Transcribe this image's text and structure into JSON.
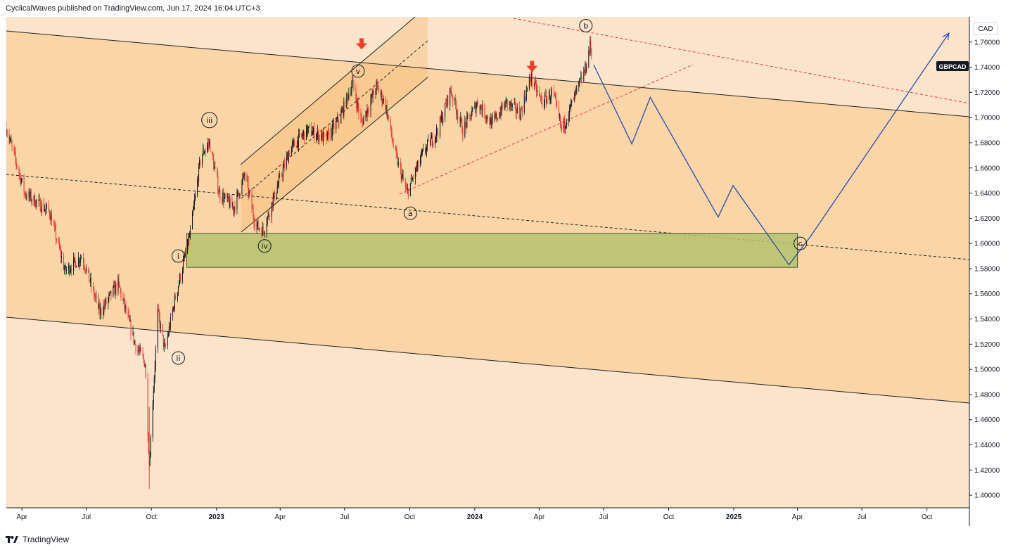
{
  "header": {
    "published_text": "CyclicalWaves published on TradingView.com, Jun 17, 2024 16:04 UTC+3"
  },
  "footer": {
    "brand": "TradingView"
  },
  "colors": {
    "up": "#131722",
    "down": "#e53935",
    "channel_fill": "#f7c98a",
    "zone_fill": "#b5c26e",
    "projection": "#2a4bb0",
    "dashed_red": "#e53950",
    "arrow": "#e8412c"
  },
  "chart_data": {
    "type": "candlestick",
    "symbol": "GBPCAD",
    "currency": "CAD",
    "y_range": [
      1.39,
      1.78
    ],
    "x_range": [
      "2022-03-10",
      "2025-11-30"
    ],
    "price_ticks": [
      "1.76000",
      "1.74000",
      "1.72000",
      "1.70000",
      "1.68000",
      "1.66000",
      "1.64000",
      "1.62000",
      "1.60000",
      "1.58000",
      "1.56000",
      "1.54000",
      "1.52000",
      "1.50000",
      "1.48000",
      "1.46000",
      "1.44000",
      "1.42000",
      "1.40000"
    ],
    "time_ticks": [
      {
        "label": "Apr",
        "date": "2022-04-01",
        "bold": false
      },
      {
        "label": "Jul",
        "date": "2022-07-01",
        "bold": false
      },
      {
        "label": "Oct",
        "date": "2022-10-01",
        "bold": false
      },
      {
        "label": "2023",
        "date": "2023-01-01",
        "bold": true
      },
      {
        "label": "Apr",
        "date": "2023-04-01",
        "bold": false
      },
      {
        "label": "Jul",
        "date": "2023-07-01",
        "bold": false
      },
      {
        "label": "Oct",
        "date": "2023-10-01",
        "bold": false
      },
      {
        "label": "2024",
        "date": "2024-01-01",
        "bold": true
      },
      {
        "label": "Apr",
        "date": "2024-04-01",
        "bold": false
      },
      {
        "label": "Jul",
        "date": "2024-07-01",
        "bold": false
      },
      {
        "label": "Oct",
        "date": "2024-10-01",
        "bold": false
      },
      {
        "label": "2025",
        "date": "2025-01-01",
        "bold": true
      },
      {
        "label": "Apr",
        "date": "2025-04-01",
        "bold": false
      },
      {
        "label": "Jul",
        "date": "2025-07-01",
        "bold": false
      },
      {
        "label": "Oct",
        "date": "2025-10-01",
        "bold": false
      }
    ],
    "price_path": [
      [
        "2022-03-10",
        1.692
      ],
      [
        "2022-04-05",
        1.64
      ],
      [
        "2022-05-10",
        1.625
      ],
      [
        "2022-06-01",
        1.578
      ],
      [
        "2022-06-25",
        1.59
      ],
      [
        "2022-07-20",
        1.545
      ],
      [
        "2022-08-15",
        1.568
      ],
      [
        "2022-09-08",
        1.52
      ],
      [
        "2022-09-22",
        1.505
      ],
      [
        "2022-09-28",
        1.425
      ],
      [
        "2022-10-10",
        1.545
      ],
      [
        "2022-10-20",
        1.515
      ],
      [
        "2022-11-05",
        1.56
      ],
      [
        "2022-11-25",
        1.608
      ],
      [
        "2022-12-10",
        1.67
      ],
      [
        "2022-12-22",
        1.68
      ],
      [
        "2023-01-05",
        1.64
      ],
      [
        "2023-01-25",
        1.628
      ],
      [
        "2023-02-10",
        1.655
      ],
      [
        "2023-02-25",
        1.615
      ],
      [
        "2023-03-08",
        1.61
      ],
      [
        "2023-03-25",
        1.64
      ],
      [
        "2023-04-15",
        1.675
      ],
      [
        "2023-05-10",
        1.69
      ],
      [
        "2023-06-05",
        1.683
      ],
      [
        "2023-06-25",
        1.7
      ],
      [
        "2023-07-12",
        1.728
      ],
      [
        "2023-07-25",
        1.695
      ],
      [
        "2023-08-15",
        1.725
      ],
      [
        "2023-08-28",
        1.71
      ],
      [
        "2023-09-10",
        1.672
      ],
      [
        "2023-09-27",
        1.64
      ],
      [
        "2023-10-20",
        1.672
      ],
      [
        "2023-11-10",
        1.69
      ],
      [
        "2023-11-28",
        1.722
      ],
      [
        "2023-12-15",
        1.69
      ],
      [
        "2024-01-05",
        1.712
      ],
      [
        "2024-01-25",
        1.695
      ],
      [
        "2024-02-15",
        1.712
      ],
      [
        "2024-03-05",
        1.703
      ],
      [
        "2024-03-20",
        1.732
      ],
      [
        "2024-04-05",
        1.712
      ],
      [
        "2024-04-20",
        1.72
      ],
      [
        "2024-05-03",
        1.69
      ],
      [
        "2024-05-20",
        1.715
      ],
      [
        "2024-06-05",
        1.738
      ],
      [
        "2024-06-12",
        1.757
      ],
      [
        "2024-06-17",
        1.742
      ]
    ],
    "projection_path": [
      [
        "2024-06-17",
        1.742
      ],
      [
        "2024-08-10",
        1.679
      ],
      [
        "2024-09-05",
        1.716
      ],
      [
        "2024-12-10",
        1.621
      ],
      [
        "2024-12-31",
        1.646
      ],
      [
        "2025-03-20",
        1.583
      ],
      [
        "2025-04-20",
        1.606
      ],
      [
        "2025-11-01",
        1.767
      ]
    ],
    "support_zone": {
      "start": "2022-11-20",
      "end": "2025-04-01",
      "top": 1.608,
      "bottom": 1.581
    },
    "wave_labels": [
      {
        "text": "i",
        "date": "2022-11-08",
        "price": 1.59
      },
      {
        "text": "ii",
        "date": "2022-11-08",
        "price": 1.509
      },
      {
        "text": "iii",
        "date": "2022-12-22",
        "price": 1.698
      },
      {
        "text": "iv",
        "date": "2023-03-10",
        "price": 1.598
      },
      {
        "text": "v",
        "date": "2023-07-20",
        "price": 1.737
      },
      {
        "text": "a",
        "date": "2023-10-02",
        "price": 1.624
      },
      {
        "text": "b",
        "date": "2024-06-06",
        "price": 1.773
      },
      {
        "text": "c",
        "date": "2025-04-05",
        "price": 1.6
      }
    ],
    "signal_arrows": [
      {
        "date": "2023-07-25",
        "price": 1.758
      },
      {
        "date": "2024-03-22",
        "price": 1.74
      }
    ],
    "last_price_label": "GBPCAD"
  }
}
